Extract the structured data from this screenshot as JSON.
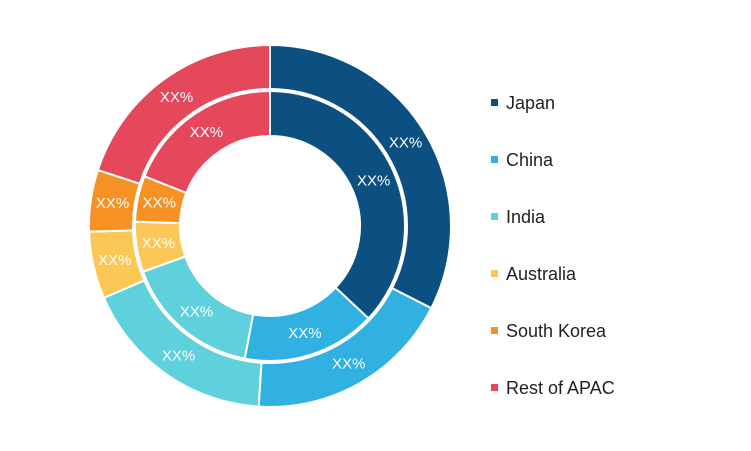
{
  "chart_data": {
    "type": "pie",
    "variant": "double-donut",
    "categories": [
      "Japan",
      "China",
      "India",
      "Australia",
      "South Korea",
      "Rest of APAC"
    ],
    "colors": [
      "#0b5080",
      "#31b0e2",
      "#5fd1dc",
      "#fbc857",
      "#f69224",
      "#e5475b"
    ],
    "series": [
      {
        "ring": "outer",
        "values": [
          32.5,
          18.5,
          17.5,
          6.0,
          5.5,
          20.0
        ],
        "labels": [
          "XX%",
          "XX%",
          "XX%",
          "XX%",
          "XX%",
          "XX%"
        ]
      },
      {
        "ring": "inner",
        "values": [
          37.0,
          16.0,
          16.5,
          6.0,
          5.5,
          19.0
        ],
        "labels": [
          "XX%",
          "XX%",
          "XX%",
          "XX%",
          "XX%",
          "XX%"
        ]
      }
    ],
    "legend_position": "right"
  }
}
